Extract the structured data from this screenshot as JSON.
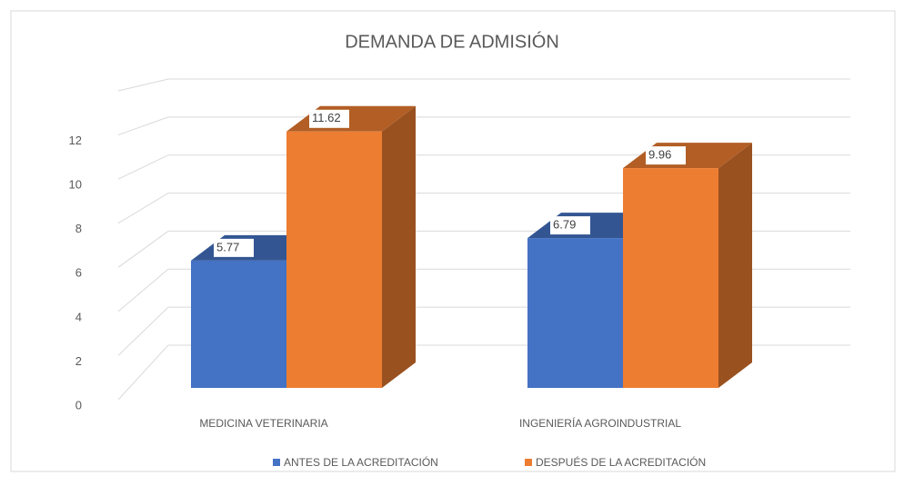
{
  "chart_data": {
    "type": "bar3d",
    "title": "DEMANDA DE ADMISIÓN",
    "categories": [
      "MEDICINA VETERINARIA",
      "INGENIERÍA AGROINDUSTRIAL"
    ],
    "series": [
      {
        "name": "ANTES DE LA ACREDITACIÓN",
        "color": "#4472c4",
        "values": [
          5.77,
          6.79
        ]
      },
      {
        "name": "DESPUÉS DE LA ACREDITACIÓN",
        "color": "#ed7d31",
        "values": [
          11.62,
          9.96
        ]
      }
    ],
    "ylim": [
      0,
      14
    ],
    "yticks": [
      0,
      2,
      4,
      6,
      8,
      10,
      12
    ],
    "grid": true,
    "legend": "bottom"
  }
}
